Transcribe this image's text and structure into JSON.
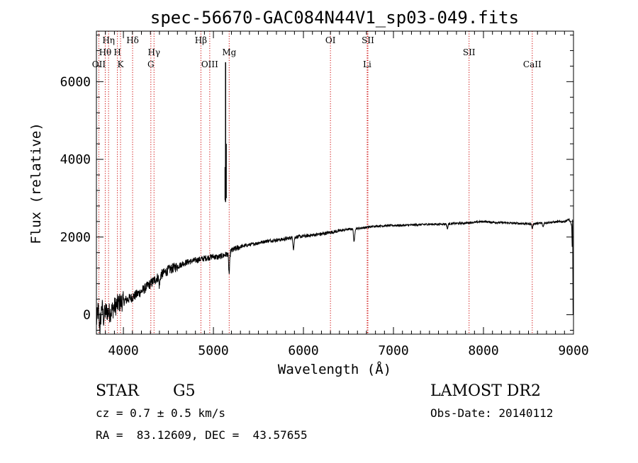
{
  "chart_data": {
    "type": "line",
    "title": "spec-56670-GAC084N44V1_sp03-049.fits",
    "xlabel": "Wavelength (Å)",
    "ylabel": "Flux (relative)",
    "xlim": [
      3700,
      9000
    ],
    "ylim": [
      -500,
      7300
    ],
    "x_ticks": [
      4000,
      5000,
      6000,
      7000,
      8000,
      9000
    ],
    "y_ticks": [
      0,
      2000,
      4000,
      6000
    ],
    "grid": false,
    "line_color": "#000000",
    "marker_color": "#cc0000",
    "spectral_lines": [
      {
        "label": "OII",
        "x": 3727,
        "row": 3
      },
      {
        "label": "Hθ",
        "x": 3798,
        "row": 2
      },
      {
        "label": "Hη",
        "x": 3835,
        "row": 1
      },
      {
        "label": "H",
        "x": 3933,
        "row": 2
      },
      {
        "label": "K",
        "x": 3968,
        "row": 3
      },
      {
        "label": "Hδ",
        "x": 4102,
        "row": 1
      },
      {
        "label": "Hγ",
        "x": 4340,
        "row": 2
      },
      {
        "label": "G",
        "x": 4305,
        "row": 3
      },
      {
        "label": "Hβ",
        "x": 4861,
        "row": 1
      },
      {
        "label": "OIII",
        "x": 4959,
        "row": 3
      },
      {
        "label": "Mg",
        "x": 5175,
        "row": 2
      },
      {
        "label": "OI",
        "x": 6300,
        "row": 1
      },
      {
        "label": "SII",
        "x": 6716,
        "row": 1
      },
      {
        "label": "Li",
        "x": 6708,
        "row": 3
      },
      {
        "label": "SII",
        "x": 7840,
        "row": 2
      },
      {
        "label": "CaII",
        "x": 8542,
        "row": 3
      }
    ],
    "series": [
      {
        "x": [
          3700,
          3720,
          3740,
          3760,
          3780,
          3800,
          3850,
          3900,
          3950,
          4000,
          4100,
          4200,
          4300,
          4400,
          4500,
          4600,
          4700,
          4800,
          4900,
          5000,
          5050,
          5100,
          5150,
          5200,
          5300,
          5400,
          5500,
          5600,
          5700,
          5800,
          5900,
          6000,
          6100,
          6200,
          6300,
          6400,
          6500,
          6600,
          6700,
          6800,
          6900,
          7000,
          7100,
          7200,
          7300,
          7400,
          7500,
          7600,
          7700,
          7800,
          7900,
          8000,
          8100,
          8200,
          8300,
          8400,
          8500,
          8600,
          8700,
          8800,
          8900,
          8950,
          8980,
          9000
        ],
        "y": [
          -200,
          150,
          -350,
          250,
          -100,
          100,
          50,
          200,
          300,
          350,
          450,
          600,
          800,
          1000,
          1150,
          1250,
          1350,
          1400,
          1450,
          1500,
          1480,
          1520,
          1560,
          1650,
          1750,
          1800,
          1850,
          1900,
          1920,
          1950,
          2000,
          2020,
          2050,
          2080,
          2120,
          2160,
          2200,
          2220,
          2250,
          2280,
          2290,
          2300,
          2300,
          2310,
          2320,
          2330,
          2330,
          2340,
          2350,
          2360,
          2380,
          2400,
          2380,
          2370,
          2360,
          2350,
          2340,
          2350,
          2370,
          2390,
          2400,
          2450,
          2300,
          0
        ]
      }
    ],
    "spikes": [
      {
        "x": 5135,
        "y0": 2900,
        "y1": 6500
      },
      {
        "x": 5142,
        "y0": 3000,
        "y1": 4400
      },
      {
        "x": 5130,
        "y0": 2950,
        "y1": 3800
      }
    ],
    "dips": [
      {
        "x": 4400,
        "depth": 250
      },
      {
        "x": 5175,
        "depth": 550
      },
      {
        "x": 5890,
        "depth": 300
      },
      {
        "x": 6563,
        "depth": 350
      },
      {
        "x": 7600,
        "depth": 120
      },
      {
        "x": 8542,
        "depth": 120
      },
      {
        "x": 8662,
        "depth": 100
      }
    ]
  },
  "info": {
    "object_class": "STAR",
    "subclass": "G5",
    "survey": "LAMOST DR2",
    "cz": "cz = 0.7 ± 0.5 km/s",
    "obs_date": "Obs-Date: 20140112",
    "coords": "RA =  83.12609, DEC =  43.57655"
  }
}
